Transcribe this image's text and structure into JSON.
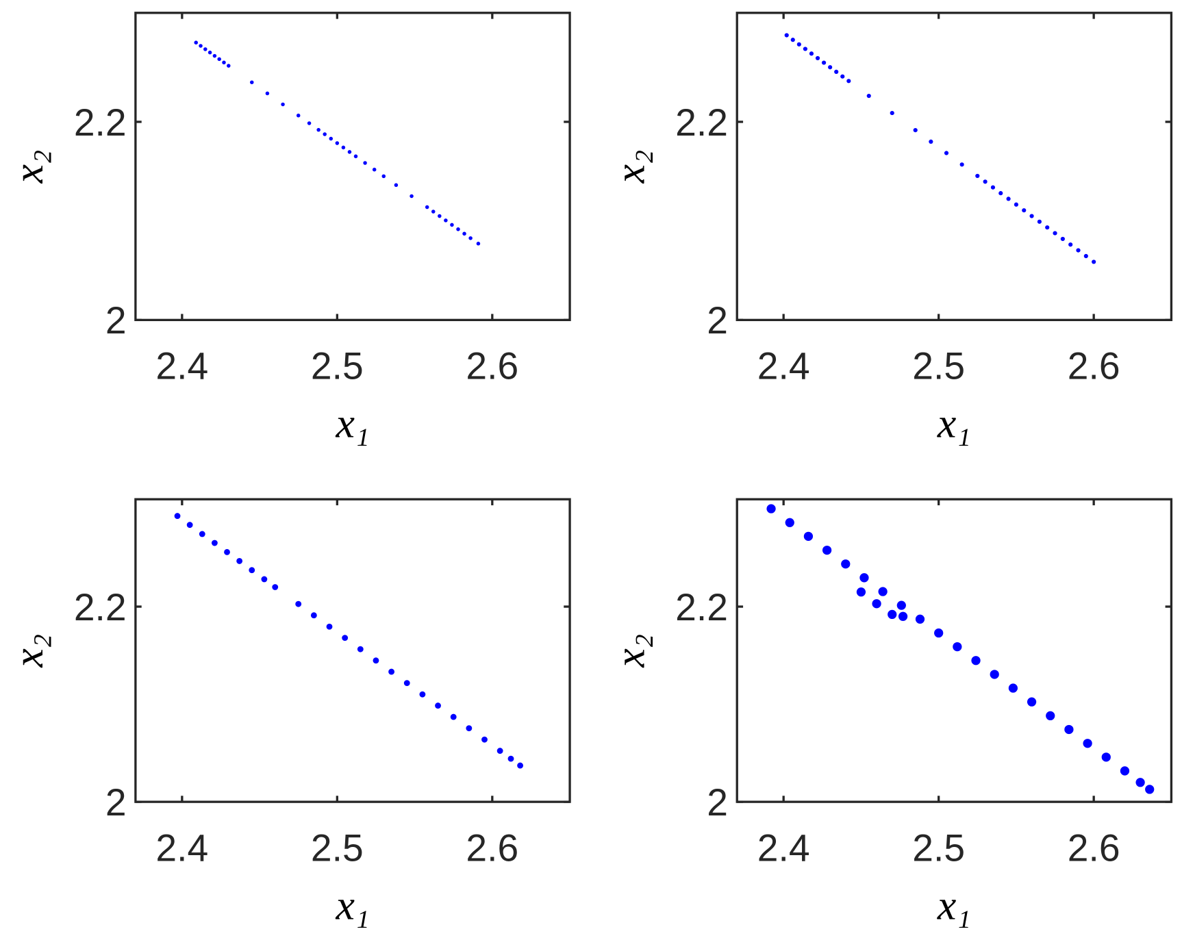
{
  "chart_data": [
    {
      "type": "scatter",
      "color": "#0000ff",
      "xlabel": "x₁",
      "ylabel": "x₂",
      "xlim": [
        2.37,
        2.65
      ],
      "ylim": [
        2,
        2.31
      ],
      "xticks": [
        2.4,
        2.5,
        2.6
      ],
      "yticks": [
        2,
        2.2
      ],
      "x": [
        2.409,
        2.412,
        2.415,
        2.418,
        2.421,
        2.424,
        2.427,
        2.43,
        2.445,
        2.455,
        2.465,
        2.475,
        2.482,
        2.488,
        2.492,
        2.496,
        2.5,
        2.504,
        2.508,
        2.512,
        2.518,
        2.524,
        2.53,
        2.538,
        2.548,
        2.558,
        2.562,
        2.566,
        2.57,
        2.574,
        2.578,
        2.582,
        2.586,
        2.591
      ],
      "y": [
        2.28,
        2.2767,
        2.2733,
        2.27,
        2.2666,
        2.2633,
        2.2599,
        2.2566,
        2.2399,
        2.2287,
        2.2176,
        2.2064,
        2.1986,
        2.1919,
        2.1875,
        2.183,
        2.1785,
        2.1741,
        2.1696,
        2.1652,
        2.1585,
        2.1518,
        2.1451,
        2.1362,
        2.125,
        2.1139,
        2.1094,
        2.1049,
        2.1005,
        2.096,
        2.0916,
        2.0871,
        2.0826,
        2.0771
      ]
    },
    {
      "type": "scatter",
      "color": "#0000ff",
      "xlabel": "x₁",
      "ylabel": "x₂",
      "xlim": [
        2.37,
        2.65
      ],
      "ylim": [
        2,
        2.31
      ],
      "xticks": [
        2.4,
        2.5,
        2.6
      ],
      "yticks": [
        2,
        2.2
      ],
      "x": [
        2.402,
        2.406,
        2.41,
        2.414,
        2.418,
        2.422,
        2.426,
        2.43,
        2.434,
        2.438,
        2.442,
        2.455,
        2.47,
        2.485,
        2.495,
        2.505,
        2.515,
        2.525,
        2.53,
        2.535,
        2.54,
        2.545,
        2.55,
        2.555,
        2.56,
        2.565,
        2.57,
        2.575,
        2.58,
        2.585,
        2.59,
        2.595,
        2.6
      ],
      "y": [
        2.2874,
        2.2828,
        2.2782,
        2.2736,
        2.2689,
        2.2643,
        2.2597,
        2.2551,
        2.2505,
        2.2458,
        2.2412,
        2.2262,
        2.2089,
        2.1916,
        2.18,
        2.1685,
        2.1569,
        2.1454,
        2.1396,
        2.1338,
        2.128,
        2.1223,
        2.1165,
        2.1107,
        2.1049,
        2.0992,
        2.0934,
        2.0876,
        2.0818,
        2.0761,
        2.0703,
        2.0645,
        2.0587
      ]
    },
    {
      "type": "scatter",
      "color": "#0000ff",
      "xlabel": "x₁",
      "ylabel": "x₂",
      "xlim": [
        2.37,
        2.65
      ],
      "ylim": [
        2,
        2.31
      ],
      "xticks": [
        2.4,
        2.5,
        2.6
      ],
      "yticks": [
        2,
        2.2
      ],
      "x": [
        2.397,
        2.405,
        2.413,
        2.421,
        2.429,
        2.437,
        2.445,
        2.453,
        2.46,
        2.475,
        2.485,
        2.495,
        2.505,
        2.515,
        2.525,
        2.535,
        2.545,
        2.555,
        2.565,
        2.575,
        2.585,
        2.595,
        2.605,
        2.612,
        2.618
      ],
      "y": [
        2.2929,
        2.2837,
        2.2744,
        2.2652,
        2.2559,
        2.2467,
        2.2374,
        2.2281,
        2.22,
        2.2027,
        2.1911,
        2.1795,
        2.168,
        2.1564,
        2.1448,
        2.1333,
        2.1217,
        2.1101,
        2.0986,
        2.087,
        2.0754,
        2.0638,
        2.0523,
        2.0442,
        2.0372
      ]
    },
    {
      "type": "scatter",
      "color": "#0000ff",
      "xlabel": "x₁",
      "ylabel": "x₂",
      "xlim": [
        2.37,
        2.65
      ],
      "ylim": [
        2,
        2.31
      ],
      "xticks": [
        2.4,
        2.5,
        2.6
      ],
      "yticks": [
        2,
        2.2
      ],
      "x": [
        2.392,
        2.404,
        2.416,
        2.428,
        2.44,
        2.452,
        2.464,
        2.476,
        2.488,
        2.5,
        2.512,
        2.524,
        2.536,
        2.548,
        2.56,
        2.572,
        2.584,
        2.596,
        2.608,
        2.62,
        2.63,
        2.636,
        2.45,
        2.46,
        2.47,
        2.477
      ],
      "y": [
        2.3003,
        2.2861,
        2.272,
        2.2578,
        2.2437,
        2.2296,
        2.2154,
        2.2013,
        2.1872,
        2.173,
        2.1589,
        2.1448,
        2.1306,
        2.1165,
        2.1024,
        2.0882,
        2.0741,
        2.0599,
        2.0458,
        2.0317,
        2.0199,
        2.0128,
        2.215,
        2.203,
        2.192,
        2.19
      ]
    }
  ]
}
